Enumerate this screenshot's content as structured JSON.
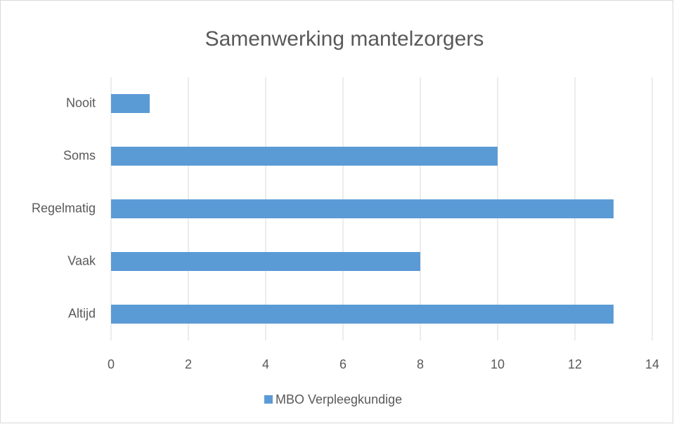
{
  "chart_data": {
    "type": "barh",
    "title": "Samenwerking mantelzorgers",
    "categories": [
      "Nooit",
      "Soms",
      "Regelmatig",
      "Vaak",
      "Altijd"
    ],
    "series": [
      {
        "name": "MBO Verpleegkundige",
        "color": "#5b9bd5",
        "values": [
          1,
          10,
          13,
          8,
          13
        ]
      }
    ],
    "xlim": [
      0,
      14
    ],
    "xticks": [
      0,
      2,
      4,
      6,
      8,
      10,
      12,
      14
    ],
    "grid": true,
    "legend": "bottom"
  }
}
